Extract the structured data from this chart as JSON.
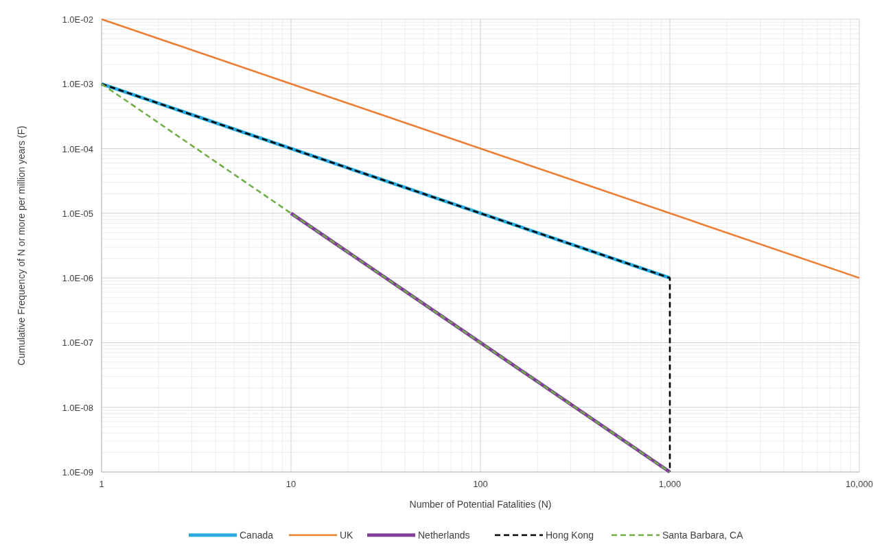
{
  "chart_data": {
    "type": "line",
    "xlabel": "Number of Potential Fatalities (N)",
    "ylabel": "Cumulative  Frequency  of N or more per million years (F)",
    "log": "xy",
    "grid": true,
    "legend": "bottom",
    "xlim": [
      1,
      10000
    ],
    "xticks": [
      1,
      10,
      100,
      {
        "value": 1000,
        "label": "1,000"
      },
      {
        "value": 10000,
        "label": "10,000"
      }
    ],
    "ylim": [
      1e-09,
      0.01
    ],
    "yticks": [
      {
        "value": 1e-09,
        "label": "1.0E-09"
      },
      {
        "value": 1e-08,
        "label": "1.0E-08"
      },
      {
        "value": 1e-07,
        "label": "1.0E-07"
      },
      {
        "value": 1e-06,
        "label": "1.0E-06"
      },
      {
        "value": 1e-05,
        "label": "1.0E-05"
      },
      {
        "value": 0.0001,
        "label": "1.0E-04"
      },
      {
        "value": 0.001,
        "label": "1.0E-03"
      },
      {
        "value": 0.01,
        "label": "1.0E-02"
      }
    ],
    "series": [
      {
        "name": "Canada",
        "color": "#29abe2",
        "line_style": "solid",
        "x": [
          1,
          1000
        ],
        "values": [
          0.001,
          1e-06
        ]
      },
      {
        "name": "UK",
        "color": "#ed7d31",
        "line_style": "solid",
        "x": [
          1,
          10000
        ],
        "values": [
          0.01,
          1e-06
        ]
      },
      {
        "name": "Netherlands",
        "color": "#7f3f98",
        "line_style": "solid",
        "x": [
          10,
          1000
        ],
        "values": [
          1e-05,
          1e-09
        ]
      },
      {
        "name": "Hong Kong",
        "color": "#000000",
        "line_style": "dashed",
        "x": [
          1,
          1000,
          1000
        ],
        "values": [
          0.001,
          1e-06,
          1e-09
        ]
      },
      {
        "name": "Santa Barbara, CA",
        "color": "#70ad47",
        "line_style": "dashed",
        "x": [
          1,
          10,
          1000
        ],
        "values": [
          0.001,
          1e-05,
          1e-09
        ]
      }
    ]
  }
}
